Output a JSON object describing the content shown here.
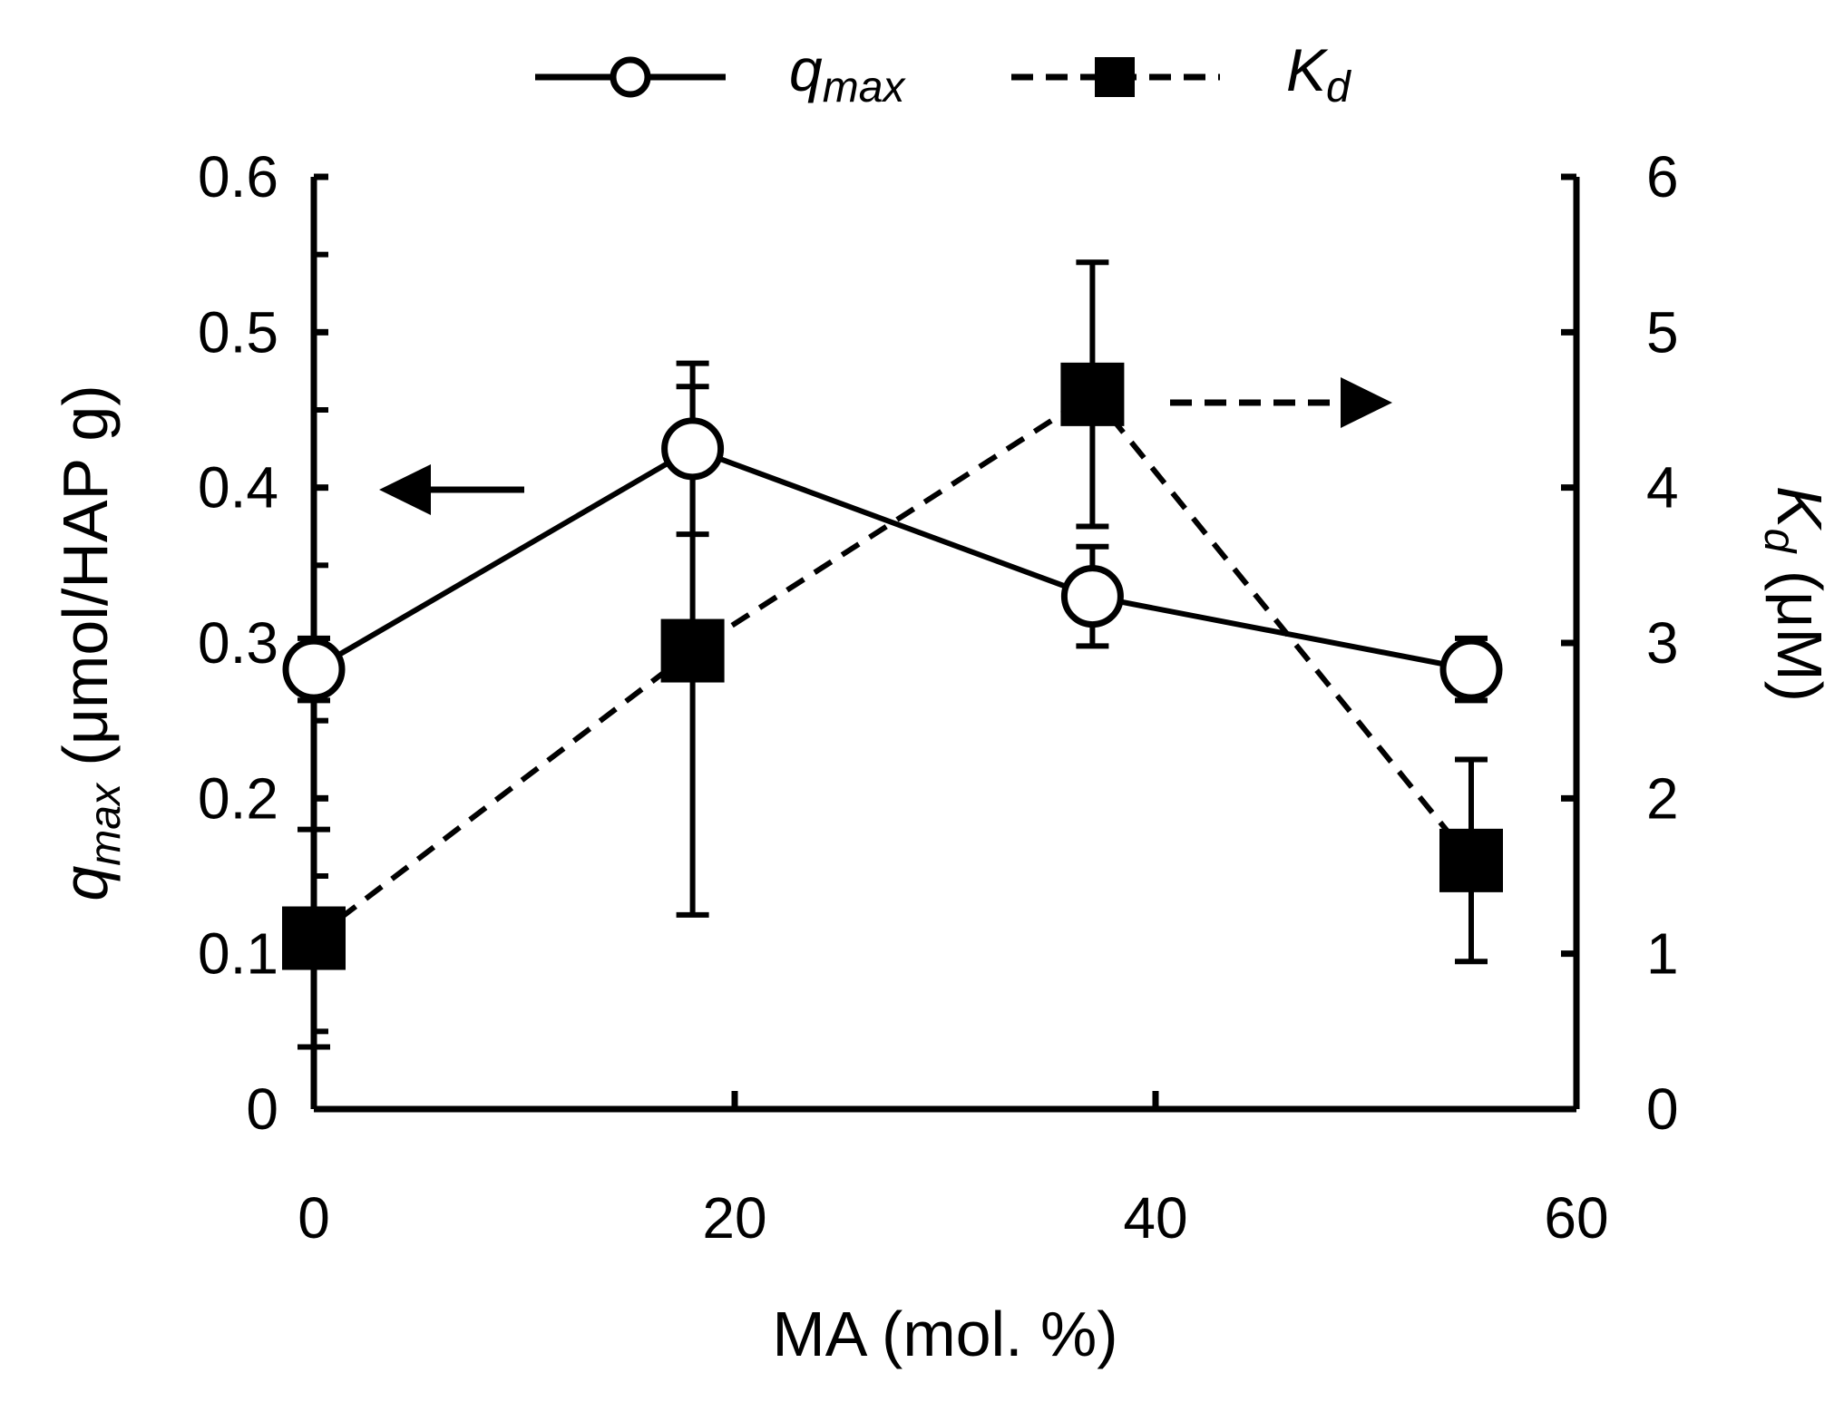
{
  "chart_data": {
    "type": "line",
    "xlabel": "MA (mol. %)",
    "xlim": [
      0,
      60
    ],
    "x_ticks": [
      "0",
      "20",
      "40",
      "60"
    ],
    "ylabel_left": {
      "main": "q",
      "sub": "max",
      "unit": " (μmol/HAP g)"
    },
    "ylim_left": [
      0,
      0.6
    ],
    "y_ticks_left": [
      "0",
      "0.1",
      "0.2",
      "0.3",
      "0.4",
      "0.5",
      "0.6"
    ],
    "ylabel_right": {
      "main": "K",
      "sub": "d",
      "unit": " (μM)"
    },
    "ylim_right": [
      0,
      6
    ],
    "y_ticks_right": [
      "0",
      "1",
      "2",
      "3",
      "4",
      "5",
      "6"
    ],
    "legend": [
      {
        "main": "q",
        "sub": "max",
        "marker": "open-circle",
        "line": "solid"
      },
      {
        "main": "K",
        "sub": "d",
        "marker": "filled-square",
        "line": "dashed"
      }
    ],
    "series": [
      {
        "name": "q_max",
        "axis": "left",
        "x": [
          0,
          18,
          37,
          55
        ],
        "values": [
          0.283,
          0.425,
          0.33,
          0.283
        ],
        "error": [
          0.02,
          0.055,
          0.032,
          0.02
        ]
      },
      {
        "name": "K_d",
        "axis": "right",
        "x": [
          0,
          18,
          37,
          55
        ],
        "values": [
          1.1,
          2.95,
          4.6,
          1.6
        ],
        "error": [
          0.7,
          1.7,
          0.85,
          0.65
        ]
      }
    ],
    "annotations": [
      {
        "type": "arrow",
        "direction": "left",
        "style": "solid",
        "meaning": "q_max uses left axis"
      },
      {
        "type": "arrow",
        "direction": "right",
        "style": "dashed",
        "meaning": "K_d uses right axis"
      }
    ]
  }
}
